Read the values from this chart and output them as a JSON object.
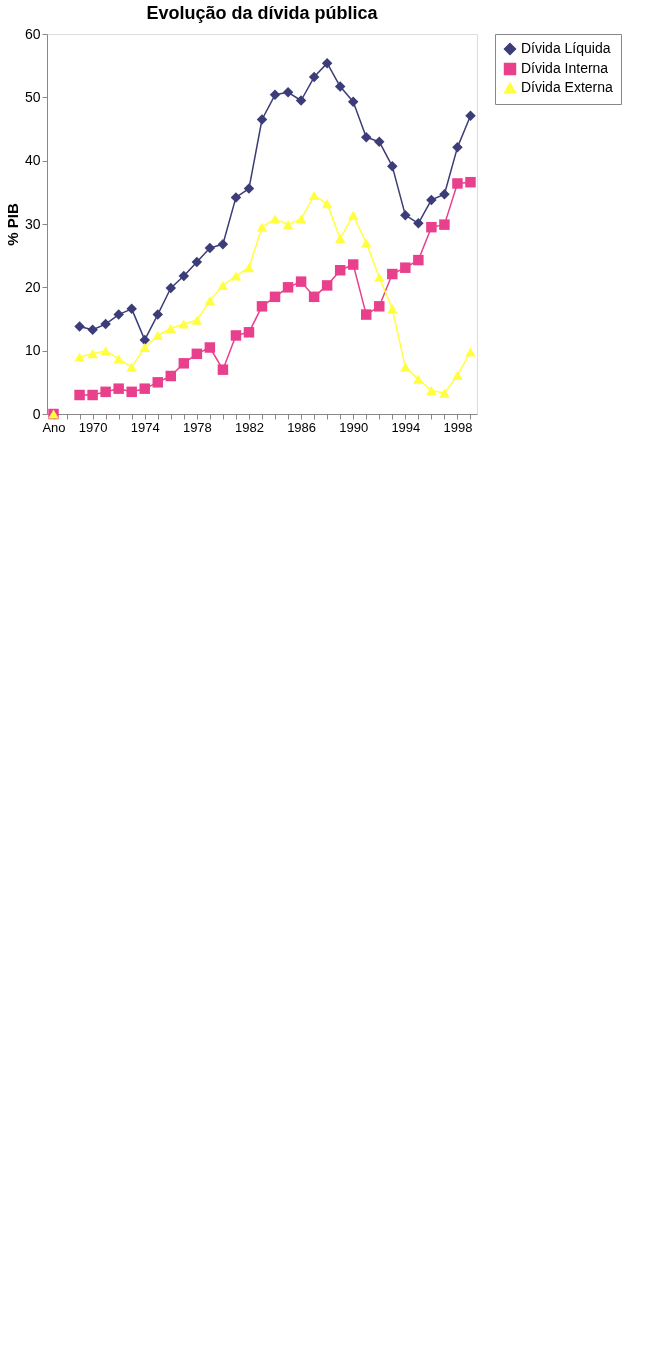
{
  "chart_data": {
    "type": "line",
    "title": "Evolução da dívida pública",
    "ylabel": "% PIB",
    "categories": [
      "Ano",
      null,
      null,
      "1970",
      null,
      null,
      null,
      "1974",
      null,
      null,
      null,
      "1978",
      null,
      null,
      null,
      "1982",
      null,
      null,
      null,
      "1986",
      null,
      null,
      null,
      "1990",
      null,
      null,
      null,
      "1994",
      null,
      null,
      null,
      "1998",
      null
    ],
    "series": [
      {
        "name": "Dívida Líquida",
        "color": "#3c3c78",
        "marker": "diamond",
        "values": [
          null,
          null,
          13.8,
          13.3,
          14.2,
          15.7,
          16.6,
          11.7,
          15.7,
          19.9,
          21.8,
          24.0,
          26.2,
          26.8,
          34.2,
          35.6,
          46.5,
          50.4,
          50.8,
          49.5,
          53.2,
          55.4,
          51.7,
          49.3,
          43.7,
          43.0,
          39.1,
          31.4,
          30.1,
          33.8,
          34.7,
          42.1,
          47.1
        ]
      },
      {
        "name": "Dívida Interna",
        "color": "#e8408c",
        "marker": "square",
        "values": [
          0,
          null,
          3,
          3,
          3.5,
          4,
          3.5,
          4,
          5,
          6,
          8,
          9.5,
          10.5,
          7.0,
          12.4,
          12.9,
          17.0,
          18.5,
          20.0,
          20.9,
          18.5,
          20.3,
          22.7,
          23.6,
          15.7,
          17.0,
          22.1,
          23.1,
          24.3,
          29.5,
          29.9,
          36.4,
          36.6
        ]
      },
      {
        "name": "Dívida Externa",
        "color": "#ffff40",
        "marker": "triangle",
        "values": [
          0,
          null,
          9,
          9.5,
          10,
          8.7,
          7.4,
          10.5,
          12.4,
          13.5,
          14.2,
          14.8,
          17.9,
          20.3,
          21.8,
          23.1,
          29.5,
          30.8,
          29.9,
          30.8,
          34.5,
          33.2,
          27.7,
          31.4,
          27,
          21.6,
          16.6,
          7.4,
          5.5,
          3.7,
          3.3,
          6.1,
          9.8
        ]
      }
    ],
    "ylim": [
      0,
      60
    ],
    "yticks": [
      0,
      10,
      20,
      30,
      40,
      50,
      60
    ],
    "grid": false,
    "legend": "right"
  }
}
